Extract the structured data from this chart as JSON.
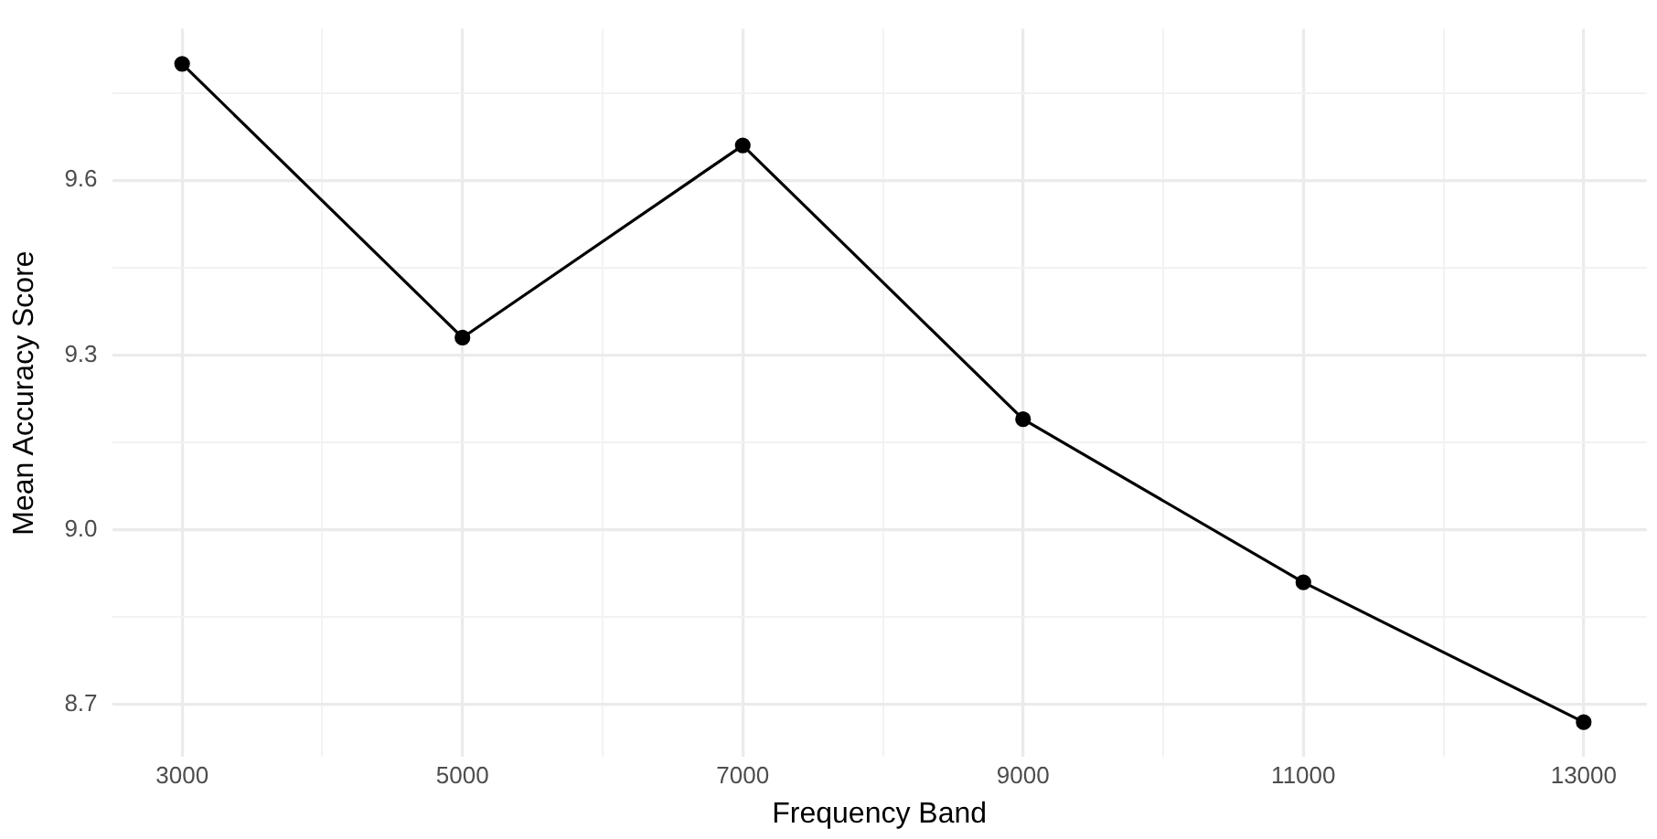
{
  "chart_data": {
    "type": "line",
    "xlabel": "Frequency Band",
    "ylabel": "Mean Accuracy Score",
    "x": [
      3000,
      5000,
      7000,
      9000,
      11000,
      13000
    ],
    "series": [
      {
        "color": "#000000",
        "values": [
          9.8,
          9.33,
          9.66,
          9.19,
          8.91,
          8.67
        ]
      }
    ],
    "xlim": [
      2500,
      13450
    ],
    "xticks": [
      3000,
      {
        "value": 4000,
        "label": null
      },
      5000,
      {
        "value": 6000,
        "label": null
      },
      7000,
      {
        "value": 8000,
        "label": null
      },
      9000,
      {
        "value": 10000,
        "label": null
      },
      11000,
      {
        "value": 12000,
        "label": null
      },
      13000
    ],
    "ylim": [
      8.61,
      9.86
    ],
    "yticks": [
      {
        "value": 8.7,
        "label": "8.7"
      },
      {
        "value": 8.85,
        "label": null
      },
      {
        "value": 9.0,
        "label": "9.0"
      },
      {
        "value": 9.15,
        "label": null
      },
      {
        "value": 9.3,
        "label": "9.3"
      },
      {
        "value": 9.45,
        "label": null
      },
      {
        "value": 9.6,
        "label": "9.6"
      },
      {
        "value": 9.75,
        "label": null
      }
    ],
    "grid": true,
    "legend": false,
    "marker": "circle",
    "line_style": "solid"
  }
}
